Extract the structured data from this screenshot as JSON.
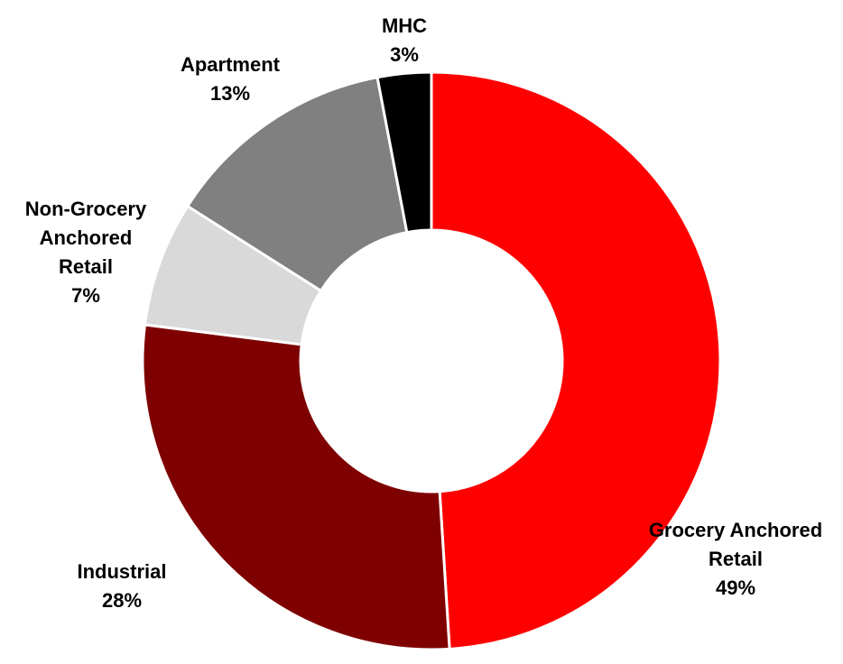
{
  "chart_data": {
    "type": "donut",
    "categories": [
      "Grocery Anchored Retail",
      "Industrial",
      "Non-Grocery Anchored Retail",
      "Apartment",
      "MHC"
    ],
    "values": [
      49,
      28,
      7,
      13,
      3
    ],
    "value_labels": [
      "49%",
      "28%",
      "7%",
      "13%",
      "3%"
    ],
    "colors": [
      "#ff0000",
      "#7f0000",
      "#d9d9d9",
      "#808080",
      "#000000"
    ]
  }
}
